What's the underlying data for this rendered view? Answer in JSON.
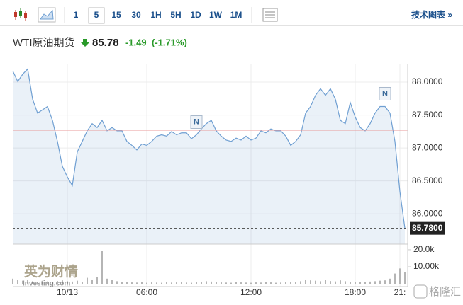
{
  "toolbar": {
    "intervals": [
      "1",
      "5",
      "15",
      "30",
      "1H",
      "5H",
      "1D",
      "1W",
      "1M"
    ],
    "selected_index": 1,
    "tech_chart": "技术图表 »"
  },
  "quote": {
    "name": "WTI原油期货",
    "price": 85.78,
    "change": -1.49,
    "change_percent": {
      "value": -1.71,
      "label": "(-1.71%)"
    }
  },
  "chart_data": {
    "type": "area",
    "categories": [
      null,
      null,
      null,
      null,
      null,
      null,
      null,
      null,
      null,
      null,
      null,
      "10/13",
      null,
      null,
      null,
      null,
      null,
      null,
      null,
      null,
      null,
      null,
      null,
      null,
      null,
      null,
      null,
      "06:00",
      null,
      null,
      null,
      null,
      null,
      null,
      null,
      null,
      null,
      null,
      null,
      null,
      null,
      null,
      null,
      null,
      null,
      null,
      null,
      null,
      "12:00",
      null,
      null,
      null,
      null,
      null,
      null,
      null,
      null,
      null,
      null,
      null,
      null,
      null,
      null,
      null,
      null,
      null,
      null,
      null,
      null,
      "18:00",
      null,
      null,
      null,
      null,
      null,
      null,
      null,
      null,
      "21:",
      null
    ],
    "series": [
      {
        "color": "#6f9fd2",
        "values": [
          88.17,
          88.01,
          88.12,
          88.2,
          87.74,
          87.53,
          87.58,
          87.63,
          87.42,
          87.1,
          86.72,
          86.56,
          86.43,
          86.94,
          87.1,
          87.26,
          87.37,
          87.31,
          87.42,
          87.26,
          87.31,
          87.26,
          87.26,
          87.1,
          87.04,
          86.97,
          87.06,
          87.04,
          87.1,
          87.18,
          87.2,
          87.18,
          87.25,
          87.2,
          87.23,
          87.23,
          87.14,
          87.2,
          87.29,
          87.37,
          87.42,
          87.26,
          87.18,
          87.12,
          87.1,
          87.15,
          87.12,
          87.18,
          87.12,
          87.15,
          87.26,
          87.23,
          87.29,
          87.26,
          87.26,
          87.18,
          87.04,
          87.1,
          87.2,
          87.53,
          87.63,
          87.8,
          87.9,
          87.8,
          87.9,
          87.74,
          87.42,
          87.37,
          87.69,
          87.47,
          87.31,
          87.26,
          87.37,
          87.53,
          87.63,
          87.63,
          87.53,
          87.1,
          86.34,
          85.78
        ]
      },
      {
        "color": "#b5b5b5",
        "axis": "y2",
        "type": "bar",
        "values": [
          3000,
          2200,
          1800,
          2500,
          1500,
          1200,
          900,
          1400,
          1100,
          1600,
          2000,
          1500,
          1300,
          1800,
          1200,
          3500,
          2500,
          4000,
          19500,
          3000,
          2200,
          1500,
          1200,
          900,
          800,
          700,
          1000,
          600,
          800,
          700,
          600,
          900,
          700,
          800,
          1100,
          700,
          600,
          900,
          1200,
          1500,
          1300,
          1000,
          800,
          700,
          600,
          900,
          800,
          700,
          600,
          800,
          700,
          900,
          800,
          600,
          700,
          1000,
          1200,
          900,
          1500,
          2500,
          2000,
          1800,
          1500,
          2200,
          1600,
          1400,
          2000,
          1500,
          1200,
          1000,
          900,
          1100,
          1300,
          1500,
          1800,
          2000,
          3000,
          6000,
          9000,
          7000
        ]
      }
    ],
    "ylim": [
      85.54,
      88.28
    ],
    "yticks": [
      {
        "value": 86,
        "label": "86.0000"
      },
      {
        "value": 86.5,
        "label": "86.5000"
      },
      {
        "value": 87,
        "label": "87.0000"
      },
      {
        "value": 87.5,
        "label": "87.5000"
      },
      {
        "value": 88,
        "label": "88.0000"
      }
    ],
    "y2lim": [
      0,
      23300
    ],
    "y2ticks": [
      {
        "value": 10000,
        "label": "10.00k"
      },
      {
        "value": 20000,
        "label": "20.0k"
      }
    ],
    "reference_line": {
      "value": 87.27,
      "color": "#e89a9a"
    },
    "last_price": {
      "value": 85.78,
      "label": "85.7800"
    },
    "annotations": [
      {
        "x_index": 37,
        "text": "N"
      },
      {
        "x_index": 75,
        "text": "N"
      }
    ],
    "grid": true
  },
  "watermarks": [
    "英为财情",
    "Investing.com",
    "格隆汇"
  ]
}
